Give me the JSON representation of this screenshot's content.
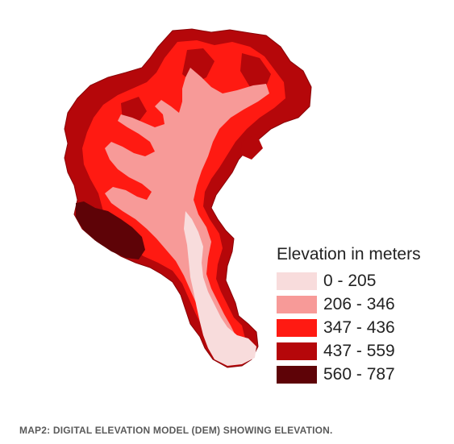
{
  "legend": {
    "title": "Elevation in meters",
    "classes": [
      {
        "label": "0 - 205",
        "color": "#f8dcdc"
      },
      {
        "label": "206 - 346",
        "color": "#f79a98"
      },
      {
        "label": "347 - 436",
        "color": "#ff1a12"
      },
      {
        "label": "437 - 559",
        "color": "#b5070a"
      },
      {
        "label": "560 - 787",
        "color": "#5e0307"
      }
    ]
  },
  "caption": "MAP2: DIGITAL ELEVATION MODEL (DEM) SHOWING ELEVATION."
}
